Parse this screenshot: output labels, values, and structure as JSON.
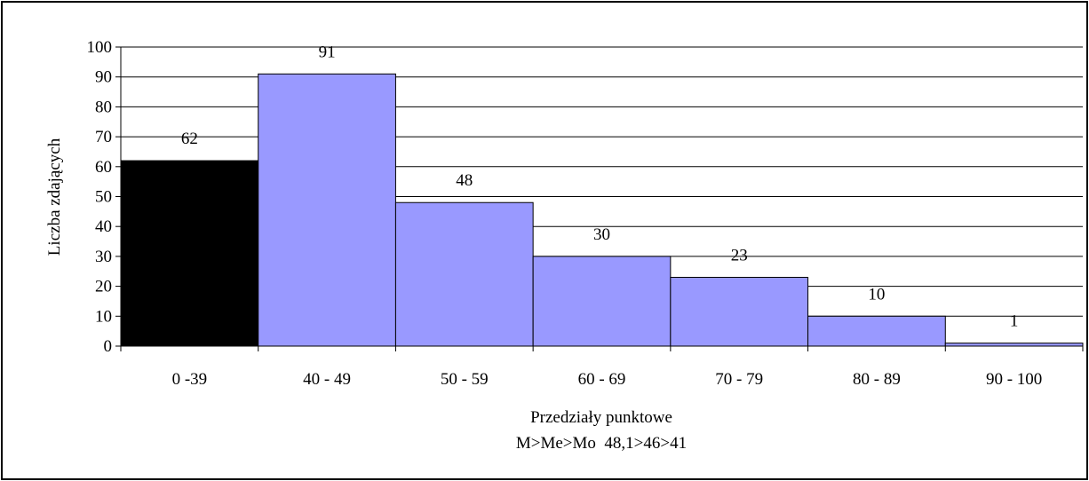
{
  "chart_data": {
    "type": "bar",
    "title": "",
    "categories": [
      "0 -39",
      "40 - 49",
      "50 - 59",
      "60 - 69",
      "70 - 79",
      "80 - 89",
      "90 - 100"
    ],
    "values": [
      62,
      91,
      48,
      30,
      23,
      10,
      1
    ],
    "xlabel": "Przedziały punktowe",
    "ylabel": "Liczba zdających",
    "caption": "M>Me>Mo  48,1>46>41",
    "ylim": [
      0,
      100
    ],
    "ytick_step": 10,
    "grid": true,
    "legend": "none",
    "colors": {
      "highlight_bar": "#000000",
      "bar": "#9999ff",
      "bar_stroke": "#000000",
      "grid": "#000000"
    },
    "highlight_index": 0
  }
}
